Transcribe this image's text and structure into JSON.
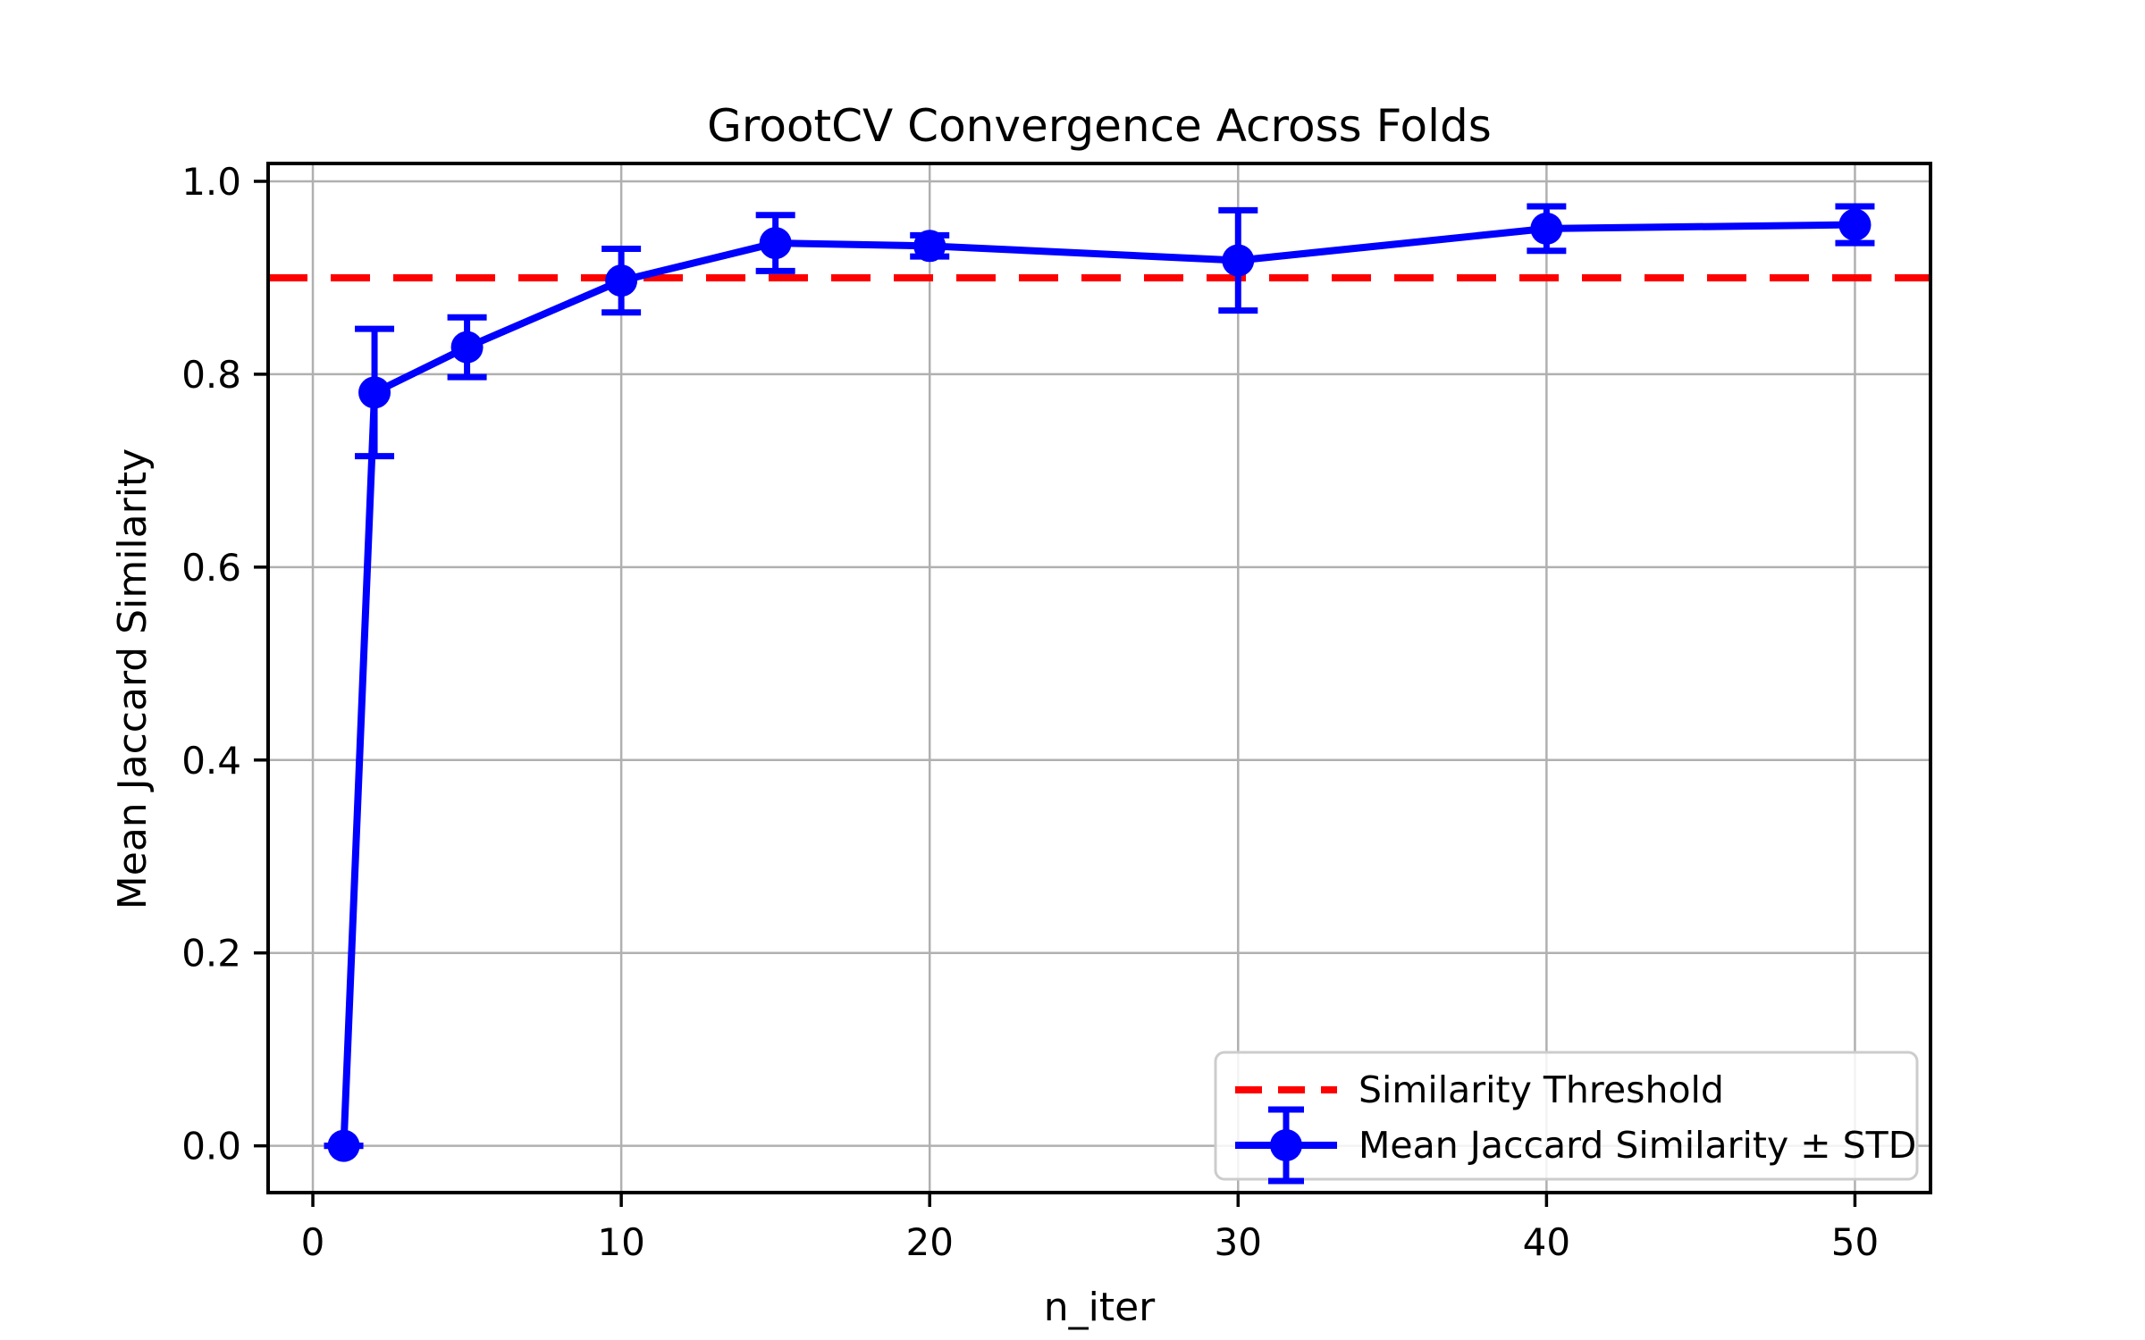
{
  "figure": {
    "background": "#ffffff"
  },
  "chart_data": {
    "type": "line",
    "title": "GrootCV Convergence Across Folds",
    "xlabel": "n_iter",
    "ylabel": "Mean Jaccard Similarity",
    "xlim": [
      -1.45,
      52.45
    ],
    "ylim": [
      -0.0485,
      1.0185
    ],
    "x_ticks": [
      0,
      10,
      20,
      30,
      40,
      50
    ],
    "y_ticks": [
      0.0,
      0.2,
      0.4,
      0.6,
      0.8,
      1.0
    ],
    "grid": true,
    "threshold": {
      "label": "Similarity Threshold",
      "value": 0.9,
      "color": "#ff0000",
      "style": "dashed"
    },
    "series": [
      {
        "name": "Mean Jaccard Similarity ± STD",
        "color": "#0000ff",
        "marker": "o",
        "x": [
          1,
          2,
          5,
          10,
          15,
          20,
          30,
          40,
          50
        ],
        "y": [
          0.0,
          0.781,
          0.828,
          0.897,
          0.936,
          0.933,
          0.918,
          0.951,
          0.955
        ],
        "std": [
          0.0,
          0.066,
          0.031,
          0.033,
          0.029,
          0.011,
          0.052,
          0.023,
          0.019
        ]
      }
    ],
    "legend": {
      "position": "lower right",
      "entries": [
        "Similarity Threshold",
        "Mean Jaccard Similarity ± STD"
      ]
    }
  },
  "colors": {
    "grid": "#b0b0b0",
    "spine": "#000000",
    "text": "#000000",
    "legend_border": "#cccccc",
    "legend_fill": "#ffffff"
  }
}
